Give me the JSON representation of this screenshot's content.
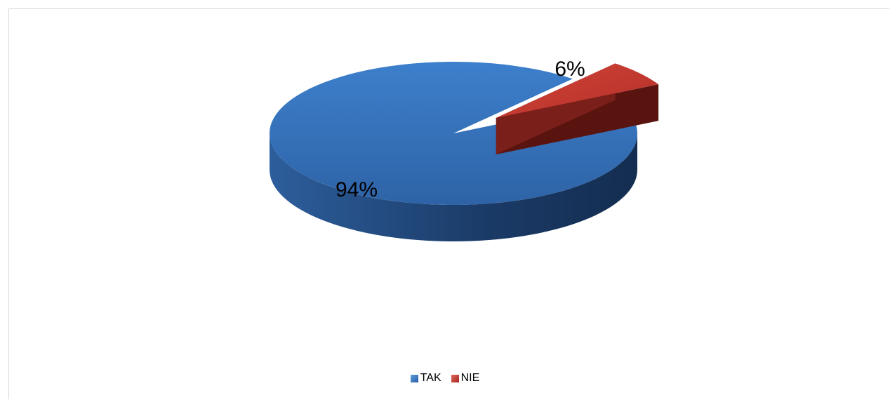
{
  "chart_data": {
    "type": "pie",
    "title": "",
    "categories": [
      "TAK",
      "NIE"
    ],
    "values": [
      94,
      6
    ],
    "data_labels": [
      "94%",
      "6%"
    ],
    "colors": [
      "#3A78C4",
      "#C0392B"
    ],
    "legend_position": "bottom",
    "style": "3d-exploded"
  }
}
